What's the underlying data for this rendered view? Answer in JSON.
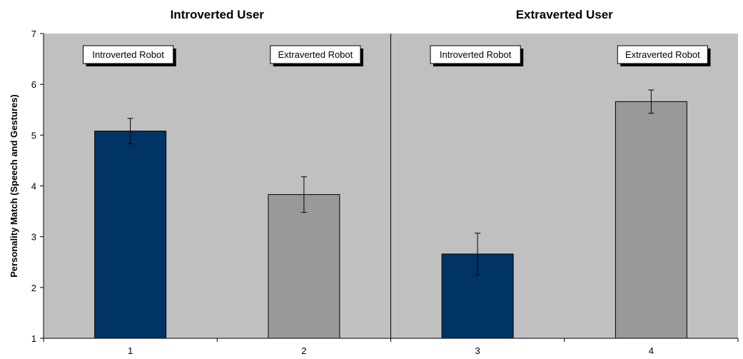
{
  "chart_data": {
    "type": "bar",
    "panels": [
      {
        "title": "Introverted User",
        "bars": [
          0,
          1
        ]
      },
      {
        "title": "Extraverted User",
        "bars": [
          2,
          3
        ]
      }
    ],
    "categories": [
      "1",
      "2",
      "3",
      "4"
    ],
    "values": [
      5.08,
      3.83,
      2.66,
      5.66
    ],
    "error": [
      0.25,
      0.35,
      0.41,
      0.23
    ],
    "bar_labels": [
      "Introverted Robot",
      "Extraverted Robot",
      "Introverted Robot",
      "Extraverted Robot"
    ],
    "bar_colors": [
      "#003366",
      "#999999",
      "#003366",
      "#999999"
    ],
    "ylabel": "Personality Match (Speech and Gestures)",
    "xlabel": "",
    "ylim": [
      1,
      7
    ],
    "yticks": [
      "1",
      "2",
      "3",
      "4",
      "5",
      "6",
      "7"
    ],
    "plot_background": "#c0c0c0",
    "grid": false
  }
}
